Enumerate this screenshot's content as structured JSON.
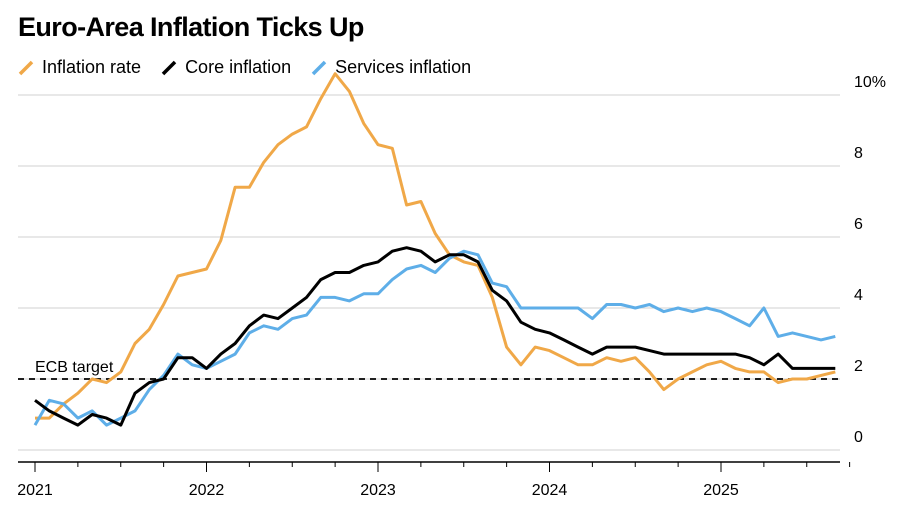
{
  "chart_data": {
    "type": "line",
    "title": "Euro-Area Inflation Ticks Up",
    "xlabel": "",
    "ylabel": "",
    "x_ticks": [
      "2021",
      "2022",
      "2023",
      "2024",
      "2025"
    ],
    "y_ticks": [
      "0",
      "2",
      "4",
      "6",
      "8",
      "10%"
    ],
    "ylim": [
      -0.5,
      10.5
    ],
    "xlim": [
      2021.0,
      2025.75
    ],
    "grid": "horizontal",
    "legend_position": "top-left",
    "x": [
      "2021-01",
      "2021-02",
      "2021-03",
      "2021-04",
      "2021-05",
      "2021-06",
      "2021-07",
      "2021-08",
      "2021-09",
      "2021-10",
      "2021-11",
      "2021-12",
      "2022-01",
      "2022-02",
      "2022-03",
      "2022-04",
      "2022-05",
      "2022-06",
      "2022-07",
      "2022-08",
      "2022-09",
      "2022-10",
      "2022-11",
      "2022-12",
      "2023-01",
      "2023-02",
      "2023-03",
      "2023-04",
      "2023-05",
      "2023-06",
      "2023-07",
      "2023-08",
      "2023-09",
      "2023-10",
      "2023-11",
      "2023-12",
      "2024-01",
      "2024-02",
      "2024-03",
      "2024-04",
      "2024-05",
      "2024-06",
      "2024-07",
      "2024-08",
      "2024-09",
      "2024-10",
      "2024-11",
      "2024-12",
      "2025-01",
      "2025-02",
      "2025-03",
      "2025-04",
      "2025-05",
      "2025-06",
      "2025-07",
      "2025-08",
      "2025-09"
    ],
    "series": [
      {
        "name": "Inflation rate",
        "color": "#f0a848",
        "values": [
          0.9,
          0.9,
          1.3,
          1.6,
          2.0,
          1.9,
          2.2,
          3.0,
          3.4,
          4.1,
          4.9,
          5.0,
          5.1,
          5.9,
          7.4,
          7.4,
          8.1,
          8.6,
          8.9,
          9.1,
          9.9,
          10.6,
          10.1,
          9.2,
          8.6,
          8.5,
          6.9,
          7.0,
          6.1,
          5.5,
          5.3,
          5.2,
          4.3,
          2.9,
          2.4,
          2.9,
          2.8,
          2.6,
          2.4,
          2.4,
          2.6,
          2.5,
          2.6,
          2.2,
          1.7,
          2.0,
          2.2,
          2.4,
          2.5,
          2.3,
          2.2,
          2.2,
          1.9,
          2.0,
          2.0,
          2.1,
          2.2
        ]
      },
      {
        "name": "Core inflation",
        "color": "#000000",
        "values": [
          1.4,
          1.1,
          0.9,
          0.7,
          1.0,
          0.9,
          0.7,
          1.6,
          1.9,
          2.0,
          2.6,
          2.6,
          2.3,
          2.7,
          3.0,
          3.5,
          3.8,
          3.7,
          4.0,
          4.3,
          4.8,
          5.0,
          5.0,
          5.2,
          5.3,
          5.6,
          5.7,
          5.6,
          5.3,
          5.5,
          5.5,
          5.3,
          4.5,
          4.2,
          3.6,
          3.4,
          3.3,
          3.1,
          2.9,
          2.7,
          2.9,
          2.9,
          2.9,
          2.8,
          2.7,
          2.7,
          2.7,
          2.7,
          2.7,
          2.7,
          2.6,
          2.4,
          2.7,
          2.3,
          2.3,
          2.3,
          2.3
        ]
      },
      {
        "name": "Services inflation",
        "color": "#5eaee8",
        "values": [
          0.7,
          1.4,
          1.3,
          0.9,
          1.1,
          0.7,
          0.9,
          1.1,
          1.7,
          2.1,
          2.7,
          2.4,
          2.3,
          2.5,
          2.7,
          3.3,
          3.5,
          3.4,
          3.7,
          3.8,
          4.3,
          4.3,
          4.2,
          4.4,
          4.4,
          4.8,
          5.1,
          5.2,
          5.0,
          5.4,
          5.6,
          5.5,
          4.7,
          4.6,
          4.0,
          4.0,
          4.0,
          4.0,
          4.0,
          3.7,
          4.1,
          4.1,
          4.0,
          4.1,
          3.9,
          4.0,
          3.9,
          4.0,
          3.9,
          3.7,
          3.5,
          4.0,
          3.2,
          3.3,
          3.2,
          3.1,
          3.2
        ]
      }
    ],
    "reference_line": {
      "label": "ECB target",
      "value": 2
    }
  }
}
